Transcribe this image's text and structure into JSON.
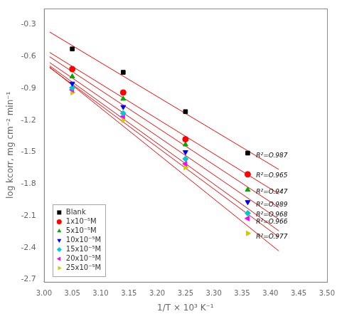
{
  "chart_data": {
    "type": "scatter",
    "xlabel": "1/T × 10³ K⁻¹",
    "ylabel": "log kcorr, mg cm⁻² min⁻¹",
    "xlim": [
      3.0,
      3.5
    ],
    "ylim": [
      -2.72,
      -0.15
    ],
    "xticks": [
      {
        "value": 3.0,
        "label": "3.00"
      },
      3.05,
      {
        "value": 3.1,
        "label": "3.10"
      },
      3.15,
      {
        "value": 3.2,
        "label": "3.20"
      },
      3.25,
      {
        "value": 3.3,
        "label": "3.30"
      },
      3.35,
      {
        "value": 3.4,
        "label": "3.40"
      },
      3.45,
      {
        "value": 3.5,
        "label": "3.50"
      }
    ],
    "yticks": [
      -2.7,
      -2.4,
      -2.1,
      -1.8,
      -1.5,
      -1.2,
      -0.9,
      -0.6,
      -0.3
    ],
    "grid": false,
    "legend": "lower left",
    "series": [
      {
        "name": "Blank",
        "color": "#000000",
        "marker": "square",
        "x": [
          3.05,
          3.14,
          3.25,
          3.36
        ],
        "y": [
          -0.53,
          -0.75,
          -1.12,
          -1.51
        ],
        "fit": {
          "x": [
            3.01,
            3.415
          ],
          "y": [
            -0.370692,
            -1.664151
          ],
          "color": "#ff0000"
        }
      },
      {
        "name": "1x10⁻⁵M",
        "color": "#ff0000",
        "marker": "circle",
        "x": [
          3.05,
          3.14,
          3.25,
          3.36
        ],
        "y": [
          -0.72,
          -0.94,
          -1.38,
          -1.71
        ],
        "fit": {
          "x": [
            3.01,
            3.415
          ],
          "y": [
            -0.562814,
            -1.894382
          ],
          "color": "#ff0000"
        }
      },
      {
        "name": "5x10⁻⁵M",
        "color": "#00aa00",
        "marker": "triangle-up",
        "x": [
          3.05,
          3.14,
          3.25,
          3.36
        ],
        "y": [
          -0.79,
          -1.0,
          -1.43,
          -1.855
        ],
        "fit": {
          "x": [
            3.01,
            3.415
          ],
          "y": [
            -0.603399,
            -2.021647
          ],
          "color": "#ff0000"
        }
      },
      {
        "name": "10x10⁻⁵M",
        "color": "#0000ff",
        "marker": "triangle-down",
        "x": [
          3.05,
          3.14,
          3.25,
          3.36
        ],
        "y": [
          -0.855,
          -1.075,
          -1.5,
          -1.97
        ],
        "fit": {
          "x": [
            3.01,
            3.415
          ],
          "y": [
            -0.657832,
            -2.133243
          ],
          "color": "#ff0000"
        }
      },
      {
        "name": "15x10⁻⁵M",
        "color": "#00cccc",
        "marker": "diamond",
        "x": [
          3.05,
          3.14,
          3.25,
          3.36
        ],
        "y": [
          -0.895,
          -1.135,
          -1.565,
          -2.075
        ],
        "fit": {
          "x": [
            3.01,
            3.415
          ],
          "y": [
            -0.688699,
            -2.242196
          ],
          "color": "#ff0000"
        }
      },
      {
        "name": "20x10⁻⁵M",
        "color": "#ff00ff",
        "marker": "triangle-left",
        "x": [
          3.05,
          3.14,
          3.25,
          3.36
        ],
        "y": [
          -0.915,
          -1.165,
          -1.61,
          -2.125
        ],
        "fit": {
          "x": [
            3.01,
            3.415
          ],
          "y": [
            -0.705844,
            -2.300065
          ],
          "color": "#ff0000"
        }
      },
      {
        "name": "25x10⁻⁵M",
        "color": "#cccc00",
        "marker": "triangle-right",
        "x": [
          3.05,
          3.14,
          3.25,
          3.36
        ],
        "y": [
          -0.94,
          -1.2,
          -1.645,
          -2.265
        ],
        "fit": {
          "x": [
            3.01,
            3.415
          ],
          "y": [
            -0.700443,
            -2.431407
          ],
          "color": "#ff0000"
        }
      }
    ],
    "annotations": [
      {
        "text": "R²=O.987",
        "x": 3.375,
        "y": -1.535
      },
      {
        "text": "R²=O.965",
        "x": 3.375,
        "y": -1.72
      },
      {
        "text": "R²=O.947",
        "x": 3.375,
        "y": -1.875
      },
      {
        "text": "R²=O.989",
        "x": 3.375,
        "y": -2.0
      },
      {
        "text": "R²=O.968",
        "x": 3.375,
        "y": -2.09
      },
      {
        "text": "R²=O.966",
        "x": 3.375,
        "y": -2.16
      },
      {
        "text": "R²=O.977",
        "x": 3.375,
        "y": -2.3
      }
    ]
  }
}
